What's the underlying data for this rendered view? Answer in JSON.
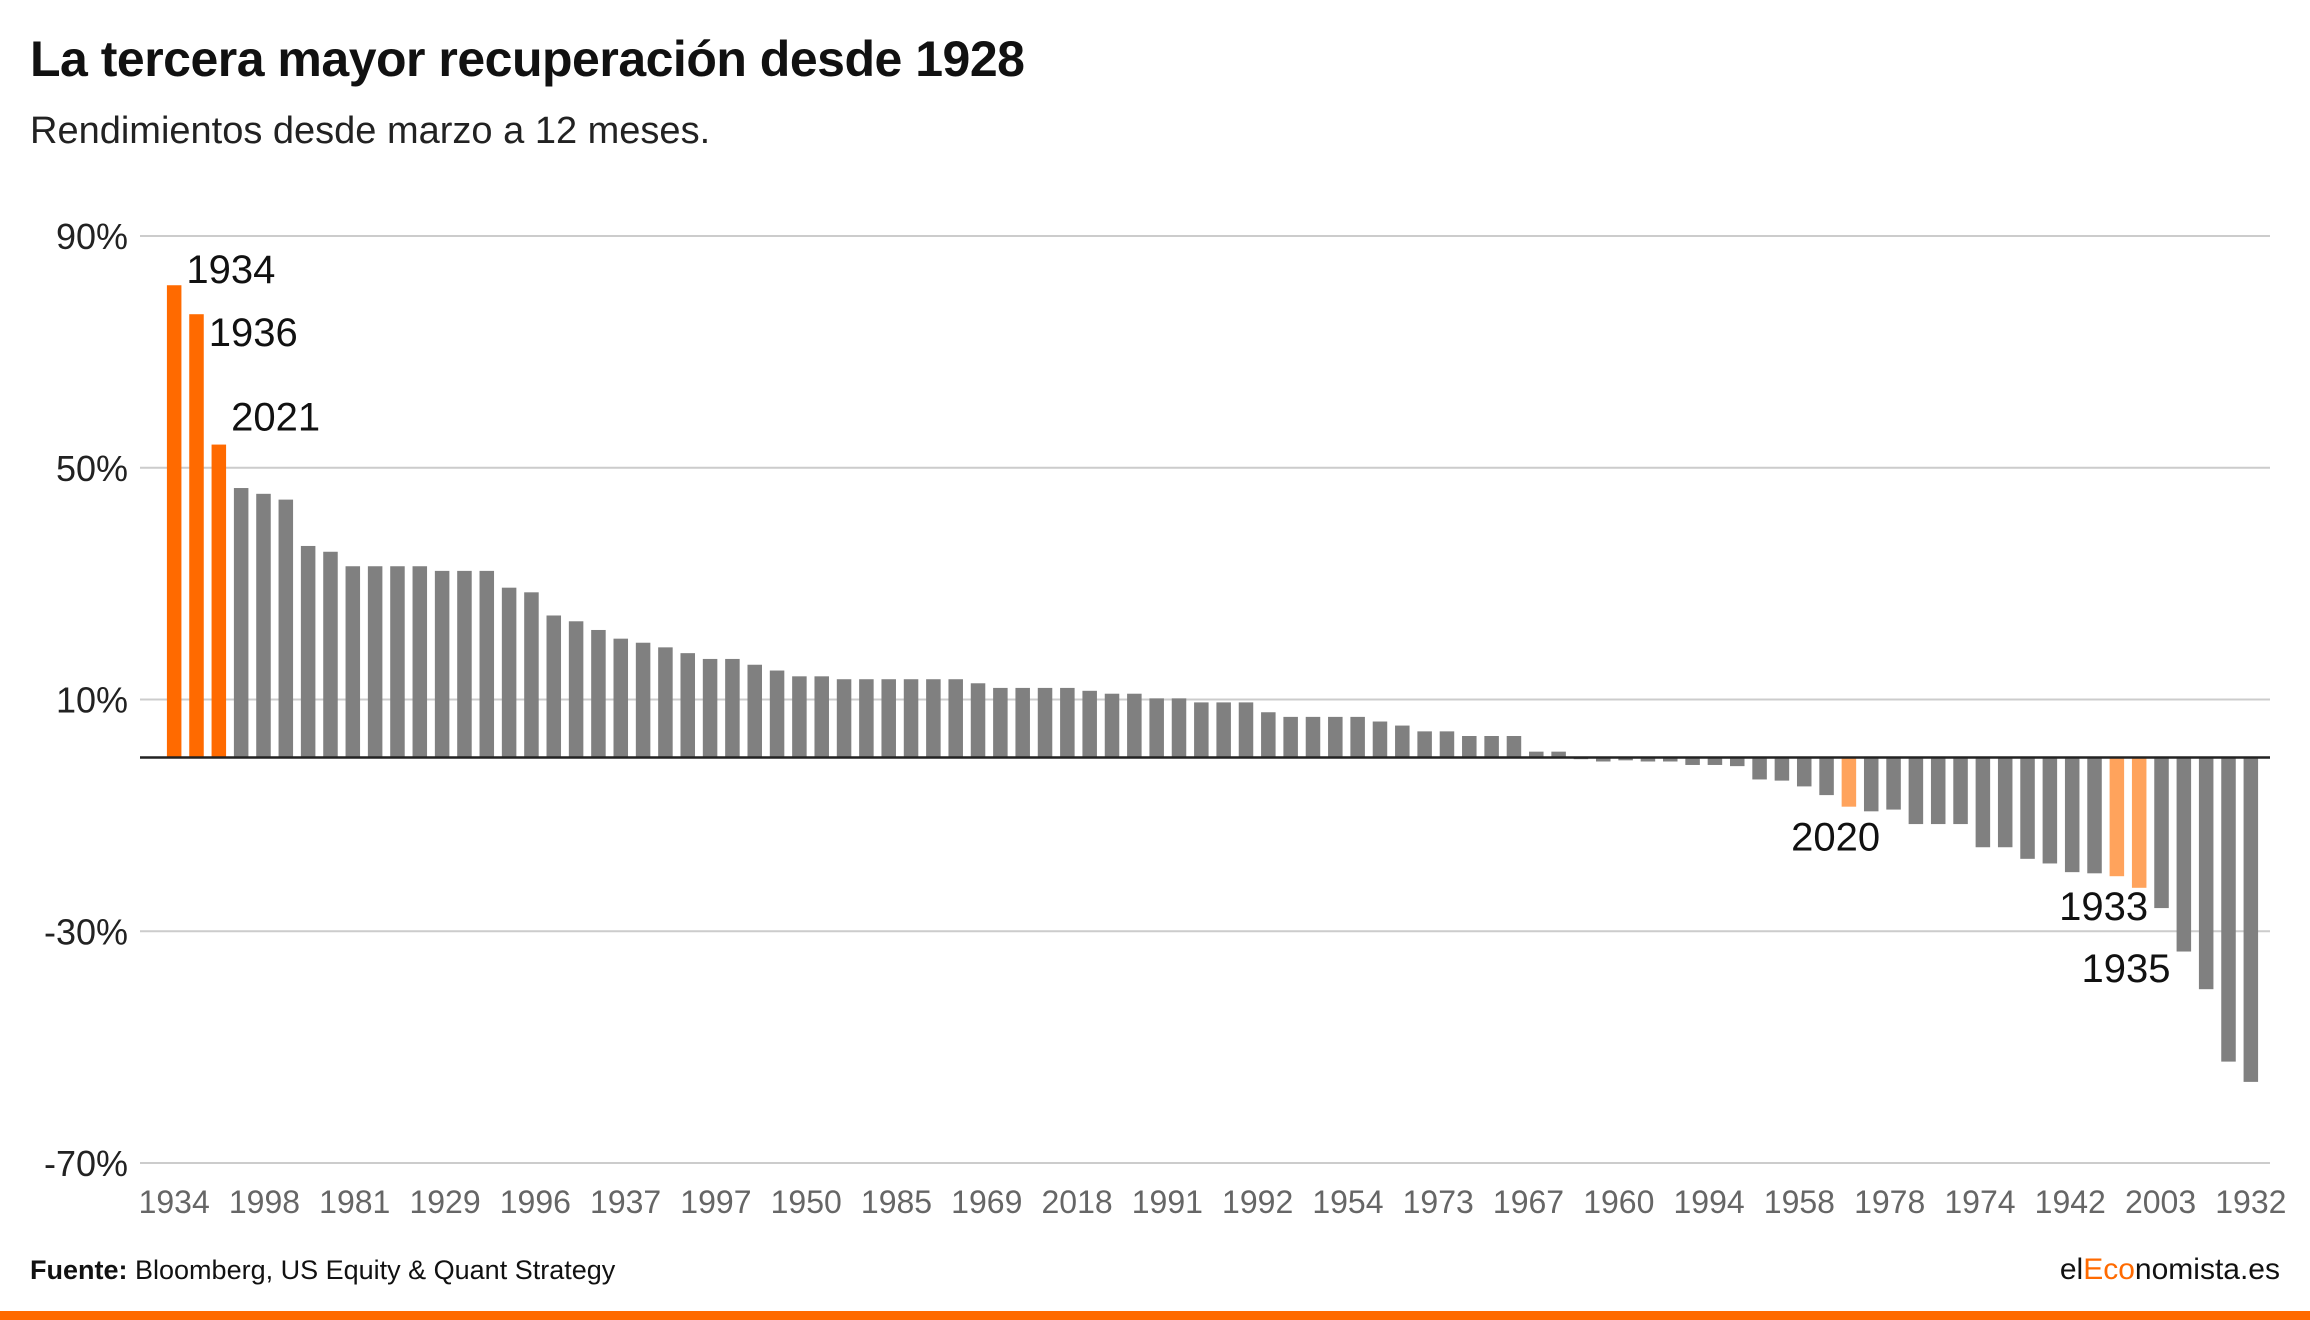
{
  "title": "La tercera mayor recuperación desde 1928",
  "subtitle": "Rendimientos desde marzo a 12 meses.",
  "footer": {
    "source_label": "Fuente:",
    "source_text": "Bloomberg, US Equity & Quant Strategy",
    "logo_part1": "el",
    "logo_part2": "Eco",
    "logo_part3": "nomista.es"
  },
  "colors": {
    "highlight": "#ff6a00",
    "highlight_light": "#ffa35c",
    "bar": "#808080",
    "grid": "#cccccc",
    "zero_line": "#222222",
    "brand": "#ff6a00"
  },
  "chart_data": {
    "type": "bar",
    "title": "La tercera mayor recuperación desde 1928",
    "subtitle": "Rendimientos desde marzo a 12 meses.",
    "xlabel": "",
    "ylabel": "",
    "ylim": [
      -70,
      90
    ],
    "yticks": [
      90,
      50,
      10,
      -30,
      -70
    ],
    "ytick_labels": [
      "90%",
      "50%",
      "10%",
      "-30%",
      "-70%"
    ],
    "grid": true,
    "legend": "none",
    "xtick_labels": [
      "1934",
      "1998",
      "1981",
      "1929",
      "1996",
      "1937",
      "1997",
      "1950",
      "1985",
      "1969",
      "2018",
      "1991",
      "1992",
      "1954",
      "1973",
      "1967",
      "1960",
      "1994",
      "1958",
      "1978",
      "1974",
      "1942",
      "2003",
      "1932"
    ],
    "values": [
      81.5,
      76.5,
      54,
      46.5,
      45.5,
      44.5,
      36.5,
      35.5,
      33,
      33,
      33,
      33,
      32.2,
      32.2,
      32.2,
      29.3,
      28.5,
      24.5,
      23.5,
      22,
      20.5,
      19.8,
      19,
      18,
      17,
      17,
      16,
      15,
      14,
      14,
      13.5,
      13.5,
      13.5,
      13.5,
      13.5,
      13.5,
      12.8,
      12,
      12,
      12,
      12,
      11.5,
      11,
      11,
      10.2,
      10.2,
      9.5,
      9.5,
      9.5,
      7.8,
      7,
      7,
      7,
      7,
      6.2,
      5.5,
      4.5,
      4.5,
      3.7,
      3.7,
      3.7,
      1,
      1,
      -0.3,
      -0.7,
      -0.5,
      -0.7,
      -0.7,
      -1.3,
      -1.3,
      -1.5,
      -3.8,
      -4,
      -5,
      -6.5,
      -8.5,
      -9.3,
      -9,
      -11.5,
      -11.5,
      -11.5,
      -15.5,
      -15.5,
      -17.5,
      -18.3,
      -19.8,
      -20,
      -20.5,
      -22.5,
      -26,
      -33.5,
      -40,
      -52.5,
      -56
    ],
    "highlights": [
      {
        "index": 0,
        "label": "1934",
        "color": "#ff6a00"
      },
      {
        "index": 1,
        "label": "1936",
        "color": "#ff6a00"
      },
      {
        "index": 2,
        "label": "2021",
        "color": "#ff6a00"
      },
      {
        "index": 75,
        "label": "2020",
        "color": "#ffa35c"
      },
      {
        "index": 87,
        "label": "1933",
        "color": "#ffa35c"
      },
      {
        "index": 88,
        "label": "1935",
        "color": "#ffa35c"
      }
    ]
  }
}
